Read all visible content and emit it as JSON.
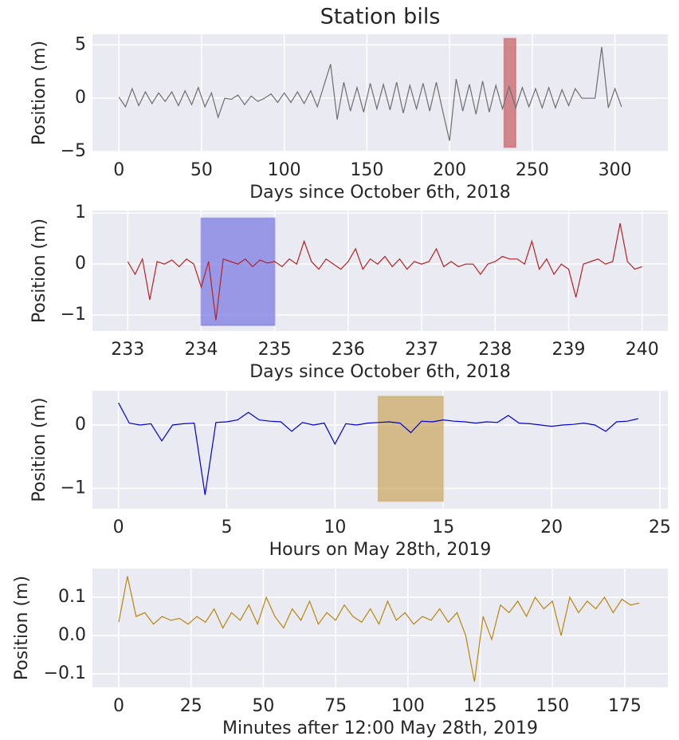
{
  "chart_data": [
    {
      "type": "line",
      "title": "Station bils",
      "xlabel": "Days since October 6th, 2018",
      "ylabel": "Position (m)",
      "color": "#6e6e6e",
      "grid": true,
      "xlim": [
        -16,
        332
      ],
      "ylim": [
        -5,
        6
      ],
      "xticks": [
        0,
        50,
        100,
        150,
        200,
        250,
        300
      ],
      "yticks": [
        {
          "value": -5,
          "label": "−5"
        },
        0,
        5
      ],
      "span": {
        "x": [
          233,
          240
        ],
        "y": [
          -4.6,
          5.6
        ],
        "color": "#c44e52"
      },
      "x": [
        0,
        4,
        8,
        12,
        16,
        20,
        24,
        28,
        32,
        36,
        40,
        44,
        48,
        52,
        56,
        60,
        64,
        68,
        72,
        76,
        80,
        84,
        88,
        92,
        96,
        100,
        104,
        108,
        112,
        116,
        120,
        124,
        128,
        132,
        136,
        140,
        144,
        148,
        152,
        156,
        160,
        164,
        168,
        172,
        176,
        180,
        184,
        188,
        192,
        196,
        200,
        204,
        208,
        212,
        216,
        220,
        224,
        228,
        232,
        236,
        240,
        244,
        248,
        252,
        256,
        260,
        264,
        268,
        272,
        276,
        280,
        284,
        288,
        292,
        296,
        300,
        304
      ],
      "values": [
        0.1,
        -0.8,
        0.9,
        -0.7,
        0.6,
        -0.5,
        0.5,
        -0.3,
        0.6,
        -0.7,
        0.7,
        -0.6,
        1.0,
        -0.8,
        0.5,
        -1.8,
        0.0,
        -0.1,
        0.3,
        -0.6,
        0.2,
        -0.3,
        0.0,
        0.4,
        -0.4,
        0.5,
        -0.4,
        0.6,
        -0.5,
        0.7,
        -0.8,
        1.2,
        3.2,
        -2.0,
        1.5,
        -1.2,
        1.0,
        -1.3,
        1.4,
        -1.0,
        1.3,
        -1.1,
        1.5,
        -1.4,
        1.2,
        -1.0,
        1.4,
        -1.2,
        1.5,
        -1.3,
        -4.0,
        1.8,
        -1.2,
        1.3,
        -1.5,
        1.6,
        -1.3,
        1.2,
        -1.0,
        1.1,
        -0.9,
        1.0,
        -0.8,
        0.9,
        -0.9,
        1.0,
        -0.9,
        0.8,
        -0.7,
        0.9,
        0.0,
        0.0,
        0.0,
        4.8,
        -0.9,
        0.9,
        -0.8
      ]
    },
    {
      "type": "line",
      "xlabel": "Days since October 6th, 2018",
      "ylabel": "Position (m)",
      "color": "#b22222",
      "grid": true,
      "xlim": [
        232.52,
        240.35
      ],
      "ylim": [
        -1.31,
        1.05
      ],
      "xticks": [
        233,
        234,
        235,
        236,
        237,
        238,
        239,
        240
      ],
      "yticks": [
        {
          "value": -1,
          "label": "−1"
        },
        0,
        1
      ],
      "span": {
        "x": [
          234,
          235
        ],
        "y": [
          -1.2,
          0.9
        ],
        "color": "#6d6ce0"
      },
      "x": [
        233,
        233.1,
        233.2,
        233.3,
        233.4,
        233.5,
        233.6,
        233.7,
        233.8,
        233.9,
        234,
        234.1,
        234.2,
        234.3,
        234.4,
        234.5,
        234.6,
        234.7,
        234.8,
        234.9,
        235,
        235.1,
        235.2,
        235.3,
        235.4,
        235.5,
        235.6,
        235.7,
        235.8,
        235.9,
        236,
        236.1,
        236.2,
        236.3,
        236.4,
        236.5,
        236.6,
        236.7,
        236.8,
        236.9,
        237,
        237.1,
        237.2,
        237.3,
        237.4,
        237.5,
        237.6,
        237.7,
        237.8,
        237.9,
        238,
        238.1,
        238.2,
        238.3,
        238.4,
        238.5,
        238.6,
        238.7,
        238.8,
        238.9,
        239,
        239.1,
        239.2,
        239.3,
        239.4,
        239.5,
        239.6,
        239.7,
        239.8,
        239.9,
        240
      ],
      "values": [
        0.05,
        -0.2,
        0.1,
        -0.7,
        0.05,
        0.0,
        0.08,
        -0.05,
        0.1,
        0.0,
        -0.45,
        0.05,
        -1.1,
        0.1,
        0.05,
        0.0,
        0.1,
        -0.05,
        0.08,
        0.02,
        0.05,
        -0.05,
        0.1,
        0.0,
        0.45,
        0.05,
        -0.1,
        0.1,
        0.0,
        -0.1,
        0.05,
        0.3,
        -0.1,
        0.1,
        0.0,
        0.15,
        -0.05,
        0.1,
        -0.1,
        0.05,
        0.0,
        0.05,
        0.3,
        -0.05,
        0.05,
        -0.05,
        0.0,
        0.0,
        -0.2,
        0.0,
        0.05,
        0.15,
        0.1,
        0.1,
        0.0,
        0.45,
        -0.1,
        0.1,
        -0.2,
        0.0,
        -0.1,
        -0.65,
        0.0,
        0.05,
        0.1,
        0.0,
        0.05,
        0.8,
        0.05,
        -0.1,
        -0.05
      ]
    },
    {
      "type": "line",
      "xlabel": "Hours on May 28th, 2019",
      "ylabel": "Position (m)",
      "color": "#0000cd",
      "grid": true,
      "xlim": [
        -1.2,
        25.37
      ],
      "ylim": [
        -1.32,
        0.54
      ],
      "xticks": [
        0,
        5,
        10,
        15,
        20,
        25
      ],
      "yticks": [
        {
          "value": -1,
          "label": "−1"
        },
        0
      ],
      "span": {
        "x": [
          12,
          15
        ],
        "y": [
          -1.2,
          0.45
        ],
        "color": "#c8a050"
      },
      "x": [
        0,
        0.5,
        1,
        1.5,
        2,
        2.5,
        3,
        3.5,
        4,
        4.5,
        5,
        5.5,
        6,
        6.5,
        7,
        7.5,
        8,
        8.5,
        9,
        9.5,
        10,
        10.5,
        11,
        11.5,
        12,
        12.5,
        13,
        13.5,
        14,
        14.5,
        15,
        15.5,
        16,
        16.5,
        17,
        17.5,
        18,
        18.5,
        19,
        19.5,
        20,
        20.5,
        21,
        21.5,
        22,
        22.5,
        23,
        23.5,
        24
      ],
      "values": [
        0.35,
        0.03,
        0.0,
        0.02,
        -0.25,
        0.0,
        0.02,
        0.03,
        -1.1,
        0.04,
        0.05,
        0.08,
        0.2,
        0.08,
        0.06,
        0.05,
        -0.1,
        0.04,
        0.0,
        0.03,
        -0.3,
        0.02,
        0.0,
        0.03,
        0.04,
        0.05,
        0.03,
        -0.12,
        0.06,
        0.05,
        0.08,
        0.06,
        0.05,
        0.03,
        0.05,
        0.04,
        0.15,
        0.03,
        0.02,
        0.0,
        -0.02,
        0.0,
        0.01,
        0.03,
        0.0,
        -0.1,
        0.05,
        0.06,
        0.1
      ]
    },
    {
      "type": "line",
      "xlabel": "Minutes after 12:00 May 28th, 2019",
      "ylabel": "Position (m)",
      "color": "#b8860b",
      "grid": true,
      "xlim": [
        -9.1,
        189.9
      ],
      "ylim": [
        -0.135,
        0.175
      ],
      "xticks": [
        0,
        25,
        50,
        75,
        100,
        125,
        150,
        175
      ],
      "yticks": [
        {
          "value": -0.1,
          "label": "−0.1"
        },
        {
          "value": 0,
          "label": "0.0"
        },
        {
          "value": 0.1,
          "label": "0.1"
        }
      ],
      "x": [
        0,
        3,
        6,
        9,
        12,
        15,
        18,
        21,
        24,
        27,
        30,
        33,
        36,
        39,
        42,
        45,
        48,
        51,
        54,
        57,
        60,
        63,
        66,
        69,
        72,
        75,
        78,
        81,
        84,
        87,
        90,
        93,
        96,
        99,
        102,
        105,
        108,
        111,
        114,
        117,
        120,
        123,
        126,
        129,
        132,
        135,
        138,
        141,
        144,
        147,
        150,
        153,
        156,
        159,
        162,
        165,
        168,
        171,
        174,
        177,
        180
      ],
      "values": [
        0.035,
        0.155,
        0.05,
        0.06,
        0.03,
        0.05,
        0.04,
        0.045,
        0.03,
        0.05,
        0.035,
        0.07,
        0.02,
        0.06,
        0.04,
        0.08,
        0.03,
        0.1,
        0.05,
        0.02,
        0.07,
        0.04,
        0.09,
        0.03,
        0.06,
        0.04,
        0.08,
        0.05,
        0.035,
        0.07,
        0.03,
        0.09,
        0.04,
        0.06,
        0.03,
        0.05,
        0.04,
        0.07,
        0.035,
        0.06,
        0.0,
        -0.12,
        0.05,
        -0.01,
        0.08,
        0.06,
        0.09,
        0.05,
        0.1,
        0.07,
        0.09,
        0.0,
        0.1,
        0.06,
        0.09,
        0.07,
        0.1,
        0.06,
        0.095,
        0.08,
        0.085
      ]
    }
  ]
}
